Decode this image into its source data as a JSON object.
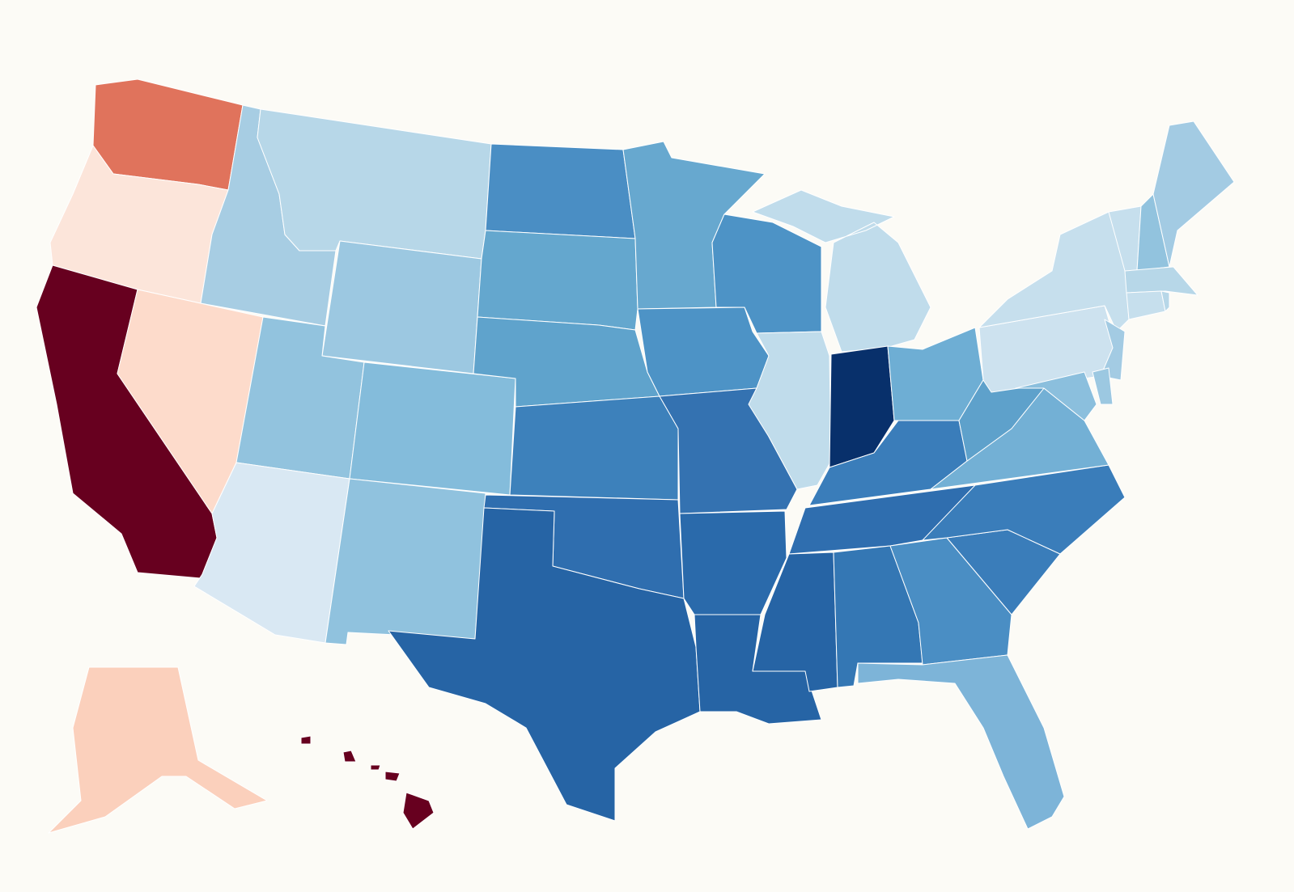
{
  "map": {
    "background": "#fcfbf6",
    "border_color": "#ffffff",
    "regions": [
      {
        "color": "#e0735c"
      },
      {
        "color": "#fce5da"
      },
      {
        "color": "#67001f"
      },
      {
        "color": "#fddbcb"
      },
      {
        "color": "#a7cde3"
      },
      {
        "color": "#b7d7e8"
      },
      {
        "color": "#9cc8e1"
      },
      {
        "color": "#92c3de"
      },
      {
        "color": "#d9e8f3"
      },
      {
        "color": "#84bcdb"
      },
      {
        "color": "#90c2de"
      },
      {
        "color": "#4a8ec4"
      },
      {
        "color": "#64a7ce"
      },
      {
        "color": "#5fa3cc"
      },
      {
        "color": "#3d81bb"
      },
      {
        "color": "#2f6eaf"
      },
      {
        "color": "#2664a5"
      },
      {
        "color": "#67a8cf"
      },
      {
        "color": "#4d93c6"
      },
      {
        "color": "#3472b1"
      },
      {
        "color": "#2a6aab"
      },
      {
        "color": "#2664a5"
      },
      {
        "color": "#4d93c6"
      },
      {
        "color": "#c0dceb"
      },
      {
        "color": "#c0dceb"
      },
      {
        "color": "#08306b"
      },
      {
        "color": "#6eaed4"
      },
      {
        "color": "#3a7dba"
      },
      {
        "color": "#2f6eaf"
      },
      {
        "color": "#2664a5"
      },
      {
        "color": "#3477b4"
      },
      {
        "color": "#4a8ec4"
      },
      {
        "color": "#7db4d8"
      },
      {
        "color": "#3a7dba"
      },
      {
        "color": "#3a7dba"
      },
      {
        "color": "#73b0d5"
      },
      {
        "color": "#5ea1cb"
      },
      {
        "color": "#cde2ef"
      },
      {
        "color": "#c6dfed"
      },
      {
        "color": "#a3cbe3"
      },
      {
        "color": "#8bbfdd"
      },
      {
        "color": "#9cc8e1"
      },
      {
        "color": "#c6dfed"
      },
      {
        "color": "#92c3de"
      },
      {
        "color": "#a3cbe3"
      },
      {
        "color": "#b7d7e8"
      },
      {
        "color": "#c6dfed"
      },
      {
        "color": "#b7d7e8"
      },
      {
        "color": "#fbd0bc"
      },
      {
        "color": "#67001f"
      }
    ]
  }
}
